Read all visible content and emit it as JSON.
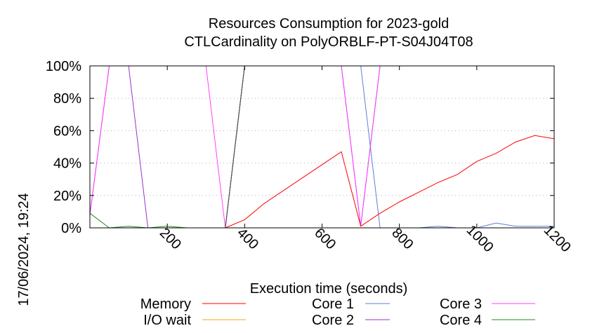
{
  "chart_data": {
    "type": "line",
    "title": "Resources Consumption for 2023-gold",
    "subtitle": "CTLCardinality on PolyORBLF-PT-S04J04T08",
    "xlabel": "Execution time (seconds)",
    "ylabel": "",
    "timestamp": "17/06/2024, 19:24",
    "xlim": [
      0,
      1200
    ],
    "ylim": [
      0,
      100
    ],
    "x_ticks": [
      200,
      400,
      600,
      800,
      1000,
      1200
    ],
    "y_ticks": [
      {
        "value": 0,
        "label": "0%"
      },
      {
        "value": 20,
        "label": "20%"
      },
      {
        "value": 40,
        "label": "40%"
      },
      {
        "value": 60,
        "label": "60%"
      },
      {
        "value": 80,
        "label": "80%"
      },
      {
        "value": 100,
        "label": "100%"
      }
    ],
    "legend_position": "bottom",
    "series": [
      {
        "name": "Memory",
        "color": "#ff0000",
        "points": [
          [
            0,
            0
          ],
          [
            50,
            0
          ],
          [
            100,
            0
          ],
          [
            150,
            0
          ],
          [
            200,
            0
          ],
          [
            250,
            0
          ],
          [
            300,
            0
          ],
          [
            350,
            0
          ],
          [
            400,
            5
          ],
          [
            450,
            15
          ],
          [
            500,
            23
          ],
          [
            550,
            31
          ],
          [
            600,
            39
          ],
          [
            650,
            47
          ],
          [
            700,
            1
          ],
          [
            750,
            9
          ],
          [
            800,
            16
          ],
          [
            850,
            22
          ],
          [
            900,
            28
          ],
          [
            950,
            33
          ],
          [
            1000,
            41
          ],
          [
            1050,
            46
          ],
          [
            1100,
            53
          ],
          [
            1150,
            57
          ],
          [
            1200,
            55
          ]
        ]
      },
      {
        "name": "I/O wait",
        "color": "#ffa500",
        "points": [
          [
            0,
            0
          ],
          [
            350,
            0
          ],
          [
            400,
            0
          ],
          [
            1200,
            0
          ]
        ]
      },
      {
        "name": "Core 1",
        "color": "#5b7fd6",
        "points": [
          [
            0,
            0
          ],
          [
            350,
            0
          ],
          [
            400,
            100
          ],
          [
            650,
            100
          ],
          [
            700,
            100
          ],
          [
            750,
            0
          ],
          [
            800,
            0
          ],
          [
            850,
            0
          ],
          [
            900,
            1
          ],
          [
            950,
            0
          ],
          [
            1000,
            0
          ],
          [
            1050,
            3
          ],
          [
            1100,
            1
          ],
          [
            1150,
            1
          ],
          [
            1200,
            1
          ]
        ]
      },
      {
        "name": "Core 2",
        "color": "#9932cc",
        "points": [
          [
            0,
            8
          ],
          [
            50,
            100
          ],
          [
            100,
            100
          ],
          [
            150,
            0
          ],
          [
            200,
            0
          ],
          [
            250,
            0
          ],
          [
            300,
            0
          ],
          [
            350,
            0
          ],
          [
            400,
            100
          ],
          [
            650,
            100
          ],
          [
            700,
            1
          ],
          [
            750,
            100
          ],
          [
            1200,
            100
          ]
        ]
      },
      {
        "name": "Core 3",
        "color": "#ff40ff",
        "points": [
          [
            0,
            8
          ],
          [
            50,
            100
          ],
          [
            300,
            100
          ],
          [
            350,
            0
          ],
          [
            400,
            100
          ],
          [
            650,
            100
          ],
          [
            700,
            1
          ],
          [
            750,
            100
          ],
          [
            1200,
            100
          ]
        ]
      },
      {
        "name": "Core 4",
        "color": "#228b22",
        "points": [
          [
            0,
            9
          ],
          [
            50,
            0
          ],
          [
            100,
            1
          ],
          [
            150,
            0
          ],
          [
            200,
            1
          ],
          [
            250,
            0
          ],
          [
            300,
            0
          ],
          [
            350,
            0
          ],
          [
            400,
            100
          ],
          [
            1200,
            100
          ]
        ]
      }
    ],
    "overlay_lines": [
      {
        "color": "#505050",
        "points": [
          [
            350,
            0
          ],
          [
            400,
            100
          ]
        ]
      }
    ]
  }
}
